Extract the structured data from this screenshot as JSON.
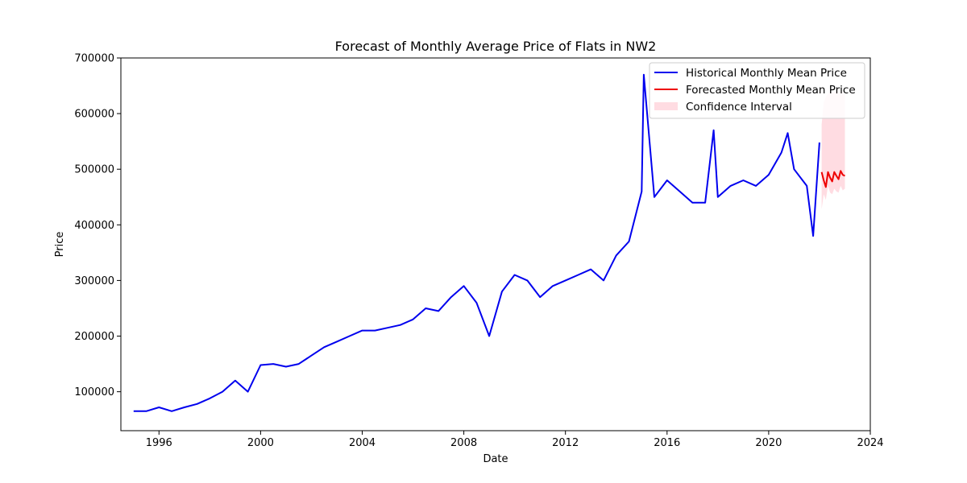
{
  "chart_data": {
    "type": "line",
    "title": "Forecast of Monthly Average Price of Flats in NW2",
    "xlabel": "Date",
    "ylabel": "Price",
    "x_ticks": [
      "1996",
      "2000",
      "2004",
      "2008",
      "2012",
      "2016",
      "2020",
      "2024"
    ],
    "y_ticks": [
      "100000",
      "200000",
      "300000",
      "400000",
      "500000",
      "600000",
      "700000"
    ],
    "xlim": [
      "1994-07",
      "2024-01"
    ],
    "ylim": [
      30000,
      700000
    ],
    "grid": false,
    "legend_position": "top-right",
    "colors": {
      "historical": "#0000ee",
      "forecast": "#ee0000",
      "interval": "#ffc0cb"
    },
    "series": [
      {
        "name": "Historical Monthly Mean Price",
        "kind": "line",
        "x": [
          "1995-01",
          "1995-07",
          "1996-01",
          "1996-07",
          "1997-01",
          "1997-07",
          "1998-01",
          "1998-07",
          "1999-01",
          "1999-07",
          "2000-01",
          "2000-07",
          "2001-01",
          "2001-07",
          "2002-01",
          "2002-07",
          "2003-01",
          "2003-07",
          "2004-01",
          "2004-07",
          "2005-01",
          "2005-07",
          "2006-01",
          "2006-07",
          "2007-01",
          "2007-07",
          "2008-01",
          "2008-07",
          "2009-01",
          "2009-07",
          "2010-01",
          "2010-07",
          "2011-01",
          "2011-07",
          "2012-01",
          "2012-07",
          "2013-01",
          "2013-07",
          "2014-01",
          "2014-07",
          "2015-01",
          "2015-02",
          "2015-07",
          "2016-01",
          "2016-07",
          "2017-01",
          "2017-07",
          "2017-11",
          "2018-01",
          "2018-07",
          "2019-01",
          "2019-07",
          "2020-01",
          "2020-07",
          "2020-10",
          "2021-01",
          "2021-07",
          "2021-10",
          "2022-01"
        ],
        "values": [
          65000,
          65000,
          72000,
          65000,
          72000,
          78000,
          88000,
          100000,
          120000,
          100000,
          148000,
          150000,
          145000,
          150000,
          165000,
          180000,
          190000,
          200000,
          210000,
          210000,
          215000,
          220000,
          230000,
          250000,
          245000,
          270000,
          290000,
          260000,
          200000,
          280000,
          310000,
          300000,
          270000,
          290000,
          300000,
          310000,
          320000,
          300000,
          345000,
          370000,
          460000,
          670000,
          450000,
          480000,
          460000,
          440000,
          440000,
          570000,
          450000,
          470000,
          480000,
          470000,
          490000,
          530000,
          565000,
          500000,
          470000,
          380000,
          548000
        ]
      },
      {
        "name": "Forecasted Monthly Mean Price",
        "kind": "line",
        "x": [
          "2022-02",
          "2022-03",
          "2022-04",
          "2022-05",
          "2022-06",
          "2022-07",
          "2022-08",
          "2022-09",
          "2022-10",
          "2022-11",
          "2022-12",
          "2023-01"
        ],
        "values": [
          495000,
          480000,
          468000,
          495000,
          485000,
          478000,
          495000,
          488000,
          482000,
          497000,
          490000,
          488000
        ]
      },
      {
        "name": "Confidence Interval",
        "kind": "band",
        "x": [
          "2022-02",
          "2022-03",
          "2022-04",
          "2022-05",
          "2022-06",
          "2022-07",
          "2022-08",
          "2022-09",
          "2022-10",
          "2022-11",
          "2022-12",
          "2023-01"
        ],
        "lower": [
          428000,
          455000,
          445000,
          470000,
          458000,
          455000,
          465000,
          460000,
          458000,
          470000,
          462000,
          465000
        ],
        "upper": [
          580000,
          620000,
          630000,
          635000,
          638000,
          640000,
          640000,
          640000,
          640000,
          640000,
          640000,
          640000
        ]
      }
    ]
  }
}
